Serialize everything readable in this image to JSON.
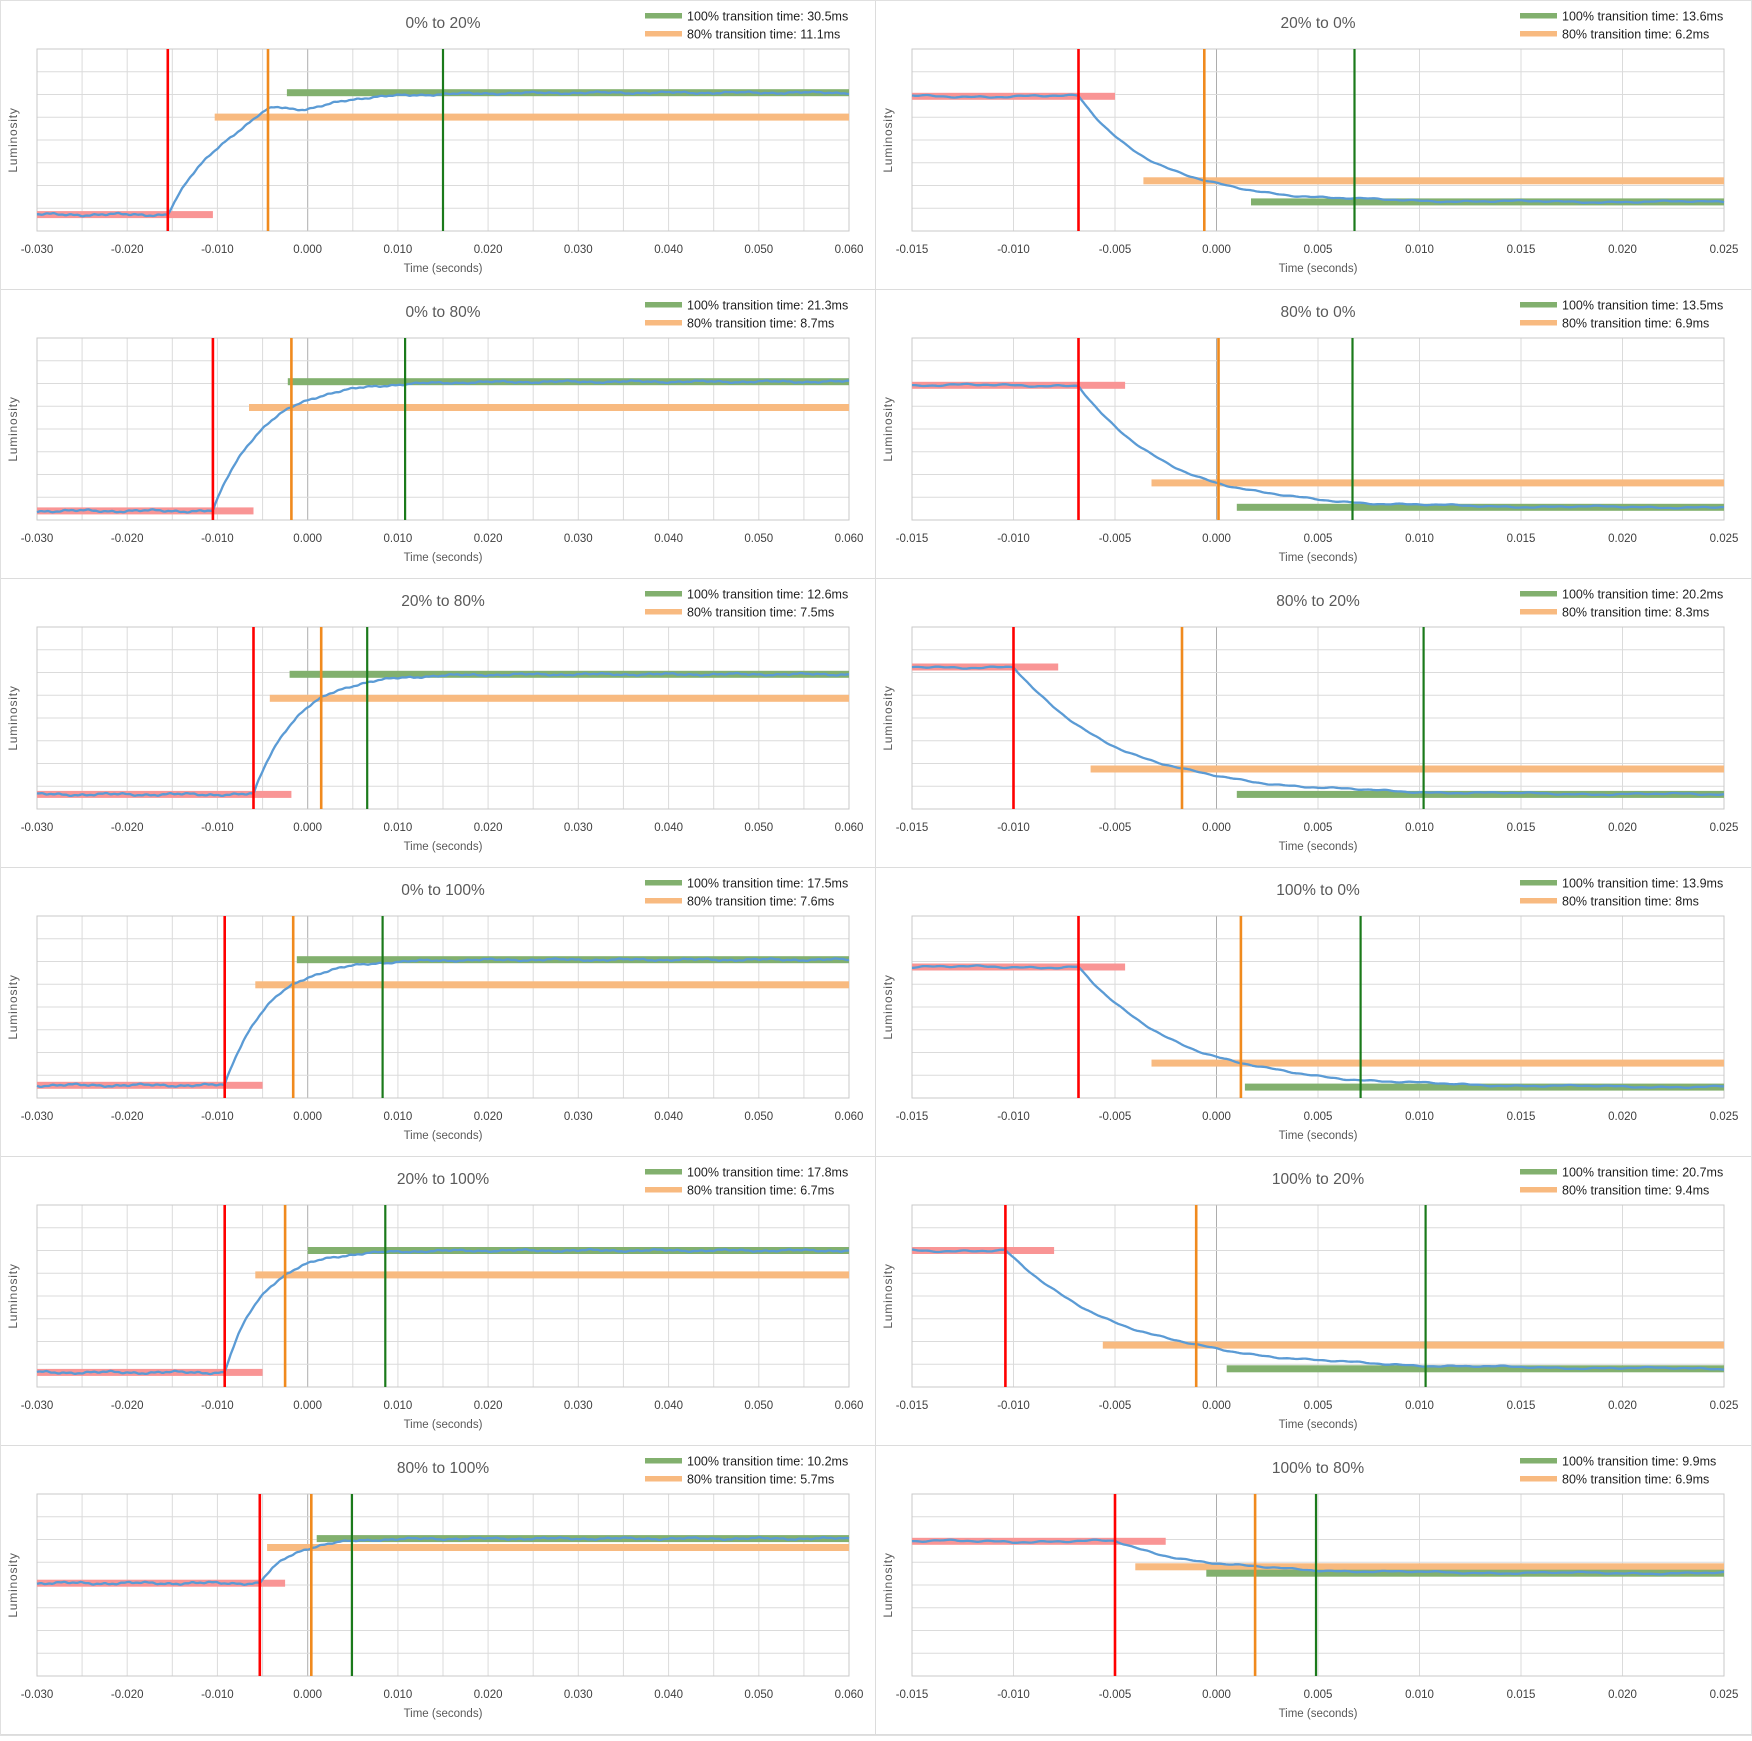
{
  "colors": {
    "curve_blue": "#5B9BD5",
    "transition_start_red": "#FF0000",
    "threshold_80_orange": "#F08A1E",
    "transition_100_green": "#1B7A1B",
    "initial_bar_pink": "#F99595",
    "threshold_bar_orange": "#F8BA80",
    "final_bar_green": "#82B06E",
    "grid_gray": "#DBDBDB",
    "zero_axis_gray": "#ADADAD",
    "border_gray": "#C9C9C9",
    "title_text": "#595959",
    "tick_text": "#3F3F3F",
    "legend_text": "#1F1F1F"
  },
  "axis": {
    "x_label": "Time (seconds)",
    "y_label": "Luminosity"
  },
  "chart_data": [
    {
      "type": "line",
      "title": "0% to 20%",
      "legend": [
        {
          "label": "100% transition time: 30.5ms",
          "color": "green"
        },
        {
          "label": "80% transition time: 11.1ms",
          "color": "orange"
        }
      ],
      "transition_100_ms": 30.5,
      "transition_80_ms": 11.1,
      "xlabel": "Time (seconds)",
      "ylabel": "Luminosity",
      "x_min": -0.03,
      "x_max": 0.06,
      "x_grid_step": 0.005,
      "x_ticks": [
        "-0.030",
        "-0.020",
        "-0.010",
        "0.000",
        "0.010",
        "0.020",
        "0.030",
        "0.040",
        "0.050",
        "0.060"
      ],
      "t_start": -0.0155,
      "start_level": 0.09,
      "end_level": 0.76,
      "red_bar_end": -0.0105,
      "orange_bar_start": -0.0103,
      "green_bar_start": -0.0023,
      "bumps": [
        {
          "u": 0.0115,
          "w": 0.0022,
          "a": 0.045
        },
        {
          "u": 0.016,
          "w": 0.0028,
          "a": -0.022
        }
      ]
    },
    {
      "type": "line",
      "title": "20% to 0%",
      "legend": [
        {
          "label": "100% transition time: 13.6ms",
          "color": "green"
        },
        {
          "label": "80% transition time: 6.2ms",
          "color": "orange"
        }
      ],
      "transition_100_ms": 13.6,
      "transition_80_ms": 6.2,
      "xlabel": "Time (seconds)",
      "ylabel": "Luminosity",
      "x_min": -0.015,
      "x_max": 0.025,
      "x_grid_step": 0.005,
      "x_ticks": [
        "-0.015",
        "-0.010",
        "-0.005",
        "0.000",
        "0.005",
        "0.010",
        "0.015",
        "0.020",
        "0.025"
      ],
      "t_start": -0.0068,
      "start_level": 0.74,
      "end_level": 0.16,
      "red_bar_end": -0.005,
      "orange_bar_start": -0.0036,
      "green_bar_start": 0.0017
    },
    {
      "type": "line",
      "title": "0% to 80%",
      "legend": [
        {
          "label": "100% transition time: 21.3ms",
          "color": "green"
        },
        {
          "label": "80% transition time: 8.7ms",
          "color": "orange"
        }
      ],
      "transition_100_ms": 21.3,
      "transition_80_ms": 8.7,
      "xlabel": "Time (seconds)",
      "ylabel": "Luminosity",
      "x_min": -0.03,
      "x_max": 0.06,
      "x_grid_step": 0.005,
      "x_ticks": [
        "-0.030",
        "-0.020",
        "-0.010",
        "0.000",
        "0.010",
        "0.020",
        "0.030",
        "0.040",
        "0.050",
        "0.060"
      ],
      "t_start": -0.0105,
      "start_level": 0.05,
      "end_level": 0.76,
      "red_bar_end": -0.006,
      "orange_bar_start": -0.0065,
      "green_bar_start": -0.0022
    },
    {
      "type": "line",
      "title": "80% to 0%",
      "legend": [
        {
          "label": "100% transition time: 13.5ms",
          "color": "green"
        },
        {
          "label": "80% transition time: 6.9ms",
          "color": "orange"
        }
      ],
      "transition_100_ms": 13.5,
      "transition_80_ms": 6.9,
      "xlabel": "Time (seconds)",
      "ylabel": "Luminosity",
      "x_min": -0.015,
      "x_max": 0.025,
      "x_grid_step": 0.005,
      "x_ticks": [
        "-0.015",
        "-0.010",
        "-0.005",
        "0.000",
        "0.005",
        "0.010",
        "0.015",
        "0.020",
        "0.025"
      ],
      "t_start": -0.0068,
      "start_level": 0.74,
      "end_level": 0.07,
      "red_bar_end": -0.0045,
      "orange_bar_start": -0.0032,
      "green_bar_start": 0.001
    },
    {
      "type": "line",
      "title": "20% to 80%",
      "legend": [
        {
          "label": "100% transition time: 12.6ms",
          "color": "green"
        },
        {
          "label": "80% transition time: 7.5ms",
          "color": "orange"
        }
      ],
      "transition_100_ms": 12.6,
      "transition_80_ms": 7.5,
      "xlabel": "Time (seconds)",
      "ylabel": "Luminosity",
      "x_min": -0.03,
      "x_max": 0.06,
      "x_grid_step": 0.005,
      "x_ticks": [
        "-0.030",
        "-0.020",
        "-0.010",
        "0.000",
        "0.010",
        "0.020",
        "0.030",
        "0.040",
        "0.050",
        "0.060"
      ],
      "t_start": -0.006,
      "start_level": 0.08,
      "end_level": 0.74,
      "red_bar_end": -0.0018,
      "orange_bar_start": -0.0042,
      "green_bar_start": -0.002
    },
    {
      "type": "line",
      "title": "80% to 20%",
      "legend": [
        {
          "label": "100% transition time: 20.2ms",
          "color": "green"
        },
        {
          "label": "80% transition time: 8.3ms",
          "color": "orange"
        }
      ],
      "transition_100_ms": 20.2,
      "transition_80_ms": 8.3,
      "xlabel": "Time (seconds)",
      "ylabel": "Luminosity",
      "x_min": -0.015,
      "x_max": 0.025,
      "x_grid_step": 0.005,
      "x_ticks": [
        "-0.015",
        "-0.010",
        "-0.005",
        "0.000",
        "0.005",
        "0.010",
        "0.015",
        "0.020",
        "0.025"
      ],
      "t_start": -0.01,
      "start_level": 0.78,
      "end_level": 0.08,
      "red_bar_end": -0.0078,
      "orange_bar_start": -0.0062,
      "green_bar_start": 0.001
    },
    {
      "type": "line",
      "title": "0% to 100%",
      "legend": [
        {
          "label": "100% transition time: 17.5ms",
          "color": "green"
        },
        {
          "label": "80% transition time: 7.6ms",
          "color": "orange"
        }
      ],
      "transition_100_ms": 17.5,
      "transition_80_ms": 7.6,
      "xlabel": "Time (seconds)",
      "ylabel": "Luminosity",
      "x_min": -0.03,
      "x_max": 0.06,
      "x_grid_step": 0.005,
      "x_ticks": [
        "-0.030",
        "-0.020",
        "-0.010",
        "0.000",
        "0.010",
        "0.020",
        "0.030",
        "0.040",
        "0.050",
        "0.060"
      ],
      "t_start": -0.0092,
      "start_level": 0.07,
      "end_level": 0.76,
      "red_bar_end": -0.005,
      "orange_bar_start": -0.0058,
      "green_bar_start": -0.0012
    },
    {
      "type": "line",
      "title": "100% to 0%",
      "legend": [
        {
          "label": "100% transition time: 13.9ms",
          "color": "green"
        },
        {
          "label": "80% transition time: 8ms",
          "color": "orange"
        }
      ],
      "transition_100_ms": 13.9,
      "transition_80_ms": 8,
      "xlabel": "Time (seconds)",
      "ylabel": "Luminosity",
      "x_min": -0.015,
      "x_max": 0.025,
      "x_grid_step": 0.005,
      "x_ticks": [
        "-0.015",
        "-0.010",
        "-0.005",
        "0.000",
        "0.005",
        "0.010",
        "0.015",
        "0.020",
        "0.025"
      ],
      "t_start": -0.0068,
      "start_level": 0.72,
      "end_level": 0.06,
      "red_bar_end": -0.0045,
      "orange_bar_start": -0.0032,
      "green_bar_start": 0.0014
    },
    {
      "type": "line",
      "title": "20% to 100%",
      "legend": [
        {
          "label": "100% transition time: 17.8ms",
          "color": "green"
        },
        {
          "label": "80% transition time: 6.7ms",
          "color": "orange"
        }
      ],
      "transition_100_ms": 17.8,
      "transition_80_ms": 6.7,
      "xlabel": "Time (seconds)",
      "ylabel": "Luminosity",
      "x_min": -0.03,
      "x_max": 0.06,
      "x_grid_step": 0.005,
      "x_ticks": [
        "-0.030",
        "-0.020",
        "-0.010",
        "0.000",
        "0.010",
        "0.020",
        "0.030",
        "0.040",
        "0.050",
        "0.060"
      ],
      "t_start": -0.0092,
      "start_level": 0.08,
      "end_level": 0.75,
      "red_bar_end": -0.005,
      "orange_bar_start": -0.0058,
      "green_bar_start": 0
    },
    {
      "type": "line",
      "title": "100% to 20%",
      "legend": [
        {
          "label": "100% transition time: 20.7ms",
          "color": "green"
        },
        {
          "label": "80% transition time: 9.4ms",
          "color": "orange"
        }
      ],
      "transition_100_ms": 20.7,
      "transition_80_ms": 9.4,
      "xlabel": "Time (seconds)",
      "ylabel": "Luminosity",
      "x_min": -0.015,
      "x_max": 0.025,
      "x_grid_step": 0.005,
      "x_ticks": [
        "-0.015",
        "-0.010",
        "-0.005",
        "0.000",
        "0.005",
        "0.010",
        "0.015",
        "0.020",
        "0.025"
      ],
      "t_start": -0.0104,
      "start_level": 0.75,
      "end_level": 0.1,
      "red_bar_end": -0.008,
      "orange_bar_start": -0.0056,
      "green_bar_start": 0.0005
    },
    {
      "type": "line",
      "title": "80% to 100%",
      "legend": [
        {
          "label": "100% transition time: 10.2ms",
          "color": "green"
        },
        {
          "label": "80% transition time: 5.7ms",
          "color": "orange"
        }
      ],
      "transition_100_ms": 10.2,
      "transition_80_ms": 5.7,
      "xlabel": "Time (seconds)",
      "ylabel": "Luminosity",
      "x_min": -0.03,
      "x_max": 0.06,
      "x_grid_step": 0.005,
      "x_ticks": [
        "-0.030",
        "-0.020",
        "-0.010",
        "0.000",
        "0.010",
        "0.020",
        "0.030",
        "0.040",
        "0.050",
        "0.060"
      ],
      "t_start": -0.0053,
      "start_level": 0.51,
      "end_level": 0.755,
      "red_bar_end": -0.0025,
      "orange_bar_start": -0.0045,
      "green_bar_start": 0.001
    },
    {
      "type": "line",
      "title": "100% to 80%",
      "legend": [
        {
          "label": "100% transition time: 9.9ms",
          "color": "green"
        },
        {
          "label": "80% transition time: 6.9ms",
          "color": "orange"
        }
      ],
      "transition_100_ms": 9.9,
      "transition_80_ms": 6.9,
      "xlabel": "Time (seconds)",
      "ylabel": "Luminosity",
      "x_min": -0.015,
      "x_max": 0.025,
      "x_grid_step": 0.005,
      "x_ticks": [
        "-0.015",
        "-0.010",
        "-0.005",
        "0.000",
        "0.005",
        "0.010",
        "0.015",
        "0.020",
        "0.025"
      ],
      "t_start": -0.005,
      "start_level": 0.74,
      "end_level": 0.565,
      "red_bar_end": -0.0025,
      "orange_bar_start": -0.004,
      "green_bar_start": -0.0005
    }
  ]
}
